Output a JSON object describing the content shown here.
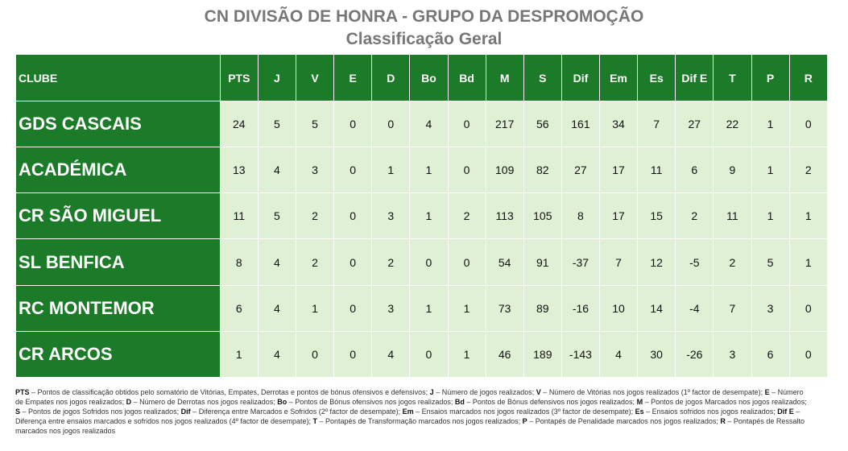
{
  "title": "CN DIVISÃO DE HONRA - GRUPO DA DESPROMOÇÃO",
  "subtitle": "Classificação Geral",
  "colors": {
    "header_green": "#1c7b28",
    "cell_light_green": "#dff0d5",
    "title_gray": "#777777"
  },
  "table": {
    "columns": [
      "CLUBE",
      "PTS",
      "J",
      "V",
      "E",
      "D",
      "Bo",
      "Bd",
      "M",
      "S",
      "Dif",
      "Em",
      "Es",
      "Dif E",
      "T",
      "P",
      "R"
    ],
    "rows": [
      [
        "GDS CASCAIS",
        "24",
        "5",
        "5",
        "0",
        "0",
        "4",
        "0",
        "217",
        "56",
        "161",
        "34",
        "7",
        "27",
        "22",
        "1",
        "0"
      ],
      [
        "ACADÉMICA",
        "13",
        "4",
        "3",
        "0",
        "1",
        "1",
        "0",
        "109",
        "82",
        "27",
        "17",
        "11",
        "6",
        "9",
        "1",
        "2"
      ],
      [
        "CR SÃO MIGUEL",
        "11",
        "5",
        "2",
        "0",
        "3",
        "1",
        "2",
        "113",
        "105",
        "8",
        "17",
        "15",
        "2",
        "11",
        "1",
        "1"
      ],
      [
        "SL BENFICA",
        "8",
        "4",
        "2",
        "0",
        "2",
        "0",
        "0",
        "54",
        "91",
        "-37",
        "7",
        "12",
        "-5",
        "2",
        "5",
        "1"
      ],
      [
        "RC MONTEMOR",
        "6",
        "4",
        "1",
        "0",
        "3",
        "1",
        "1",
        "73",
        "89",
        "-16",
        "10",
        "14",
        "-4",
        "7",
        "3",
        "0"
      ],
      [
        "CR ARCOS",
        "1",
        "4",
        "0",
        "0",
        "4",
        "0",
        "1",
        "46",
        "189",
        "-143",
        "4",
        "30",
        "-26",
        "3",
        "6",
        "0"
      ]
    ]
  },
  "legend": [
    {
      "key": "PTS",
      "desc": "Pontos de classificação obtidos pelo somatório de Vitórias, Empates, Derrotas e pontos de bónus ofensivos e defensivos;"
    },
    {
      "key": "J",
      "desc": "Número de jogos realizados;"
    },
    {
      "key": "V",
      "desc": "Número de Vitórias nos jogos realizados (1º factor de desempate);"
    },
    {
      "key": "E",
      "desc": "Número de Empates nos jogos realizados;"
    },
    {
      "key": "D",
      "desc": "Número de Derrotas nos jogos realizados;"
    },
    {
      "key": "Bo",
      "desc": "Pontos de Bónus ofensivos nos jogos realizados;"
    },
    {
      "key": "Bd",
      "desc": "Pontos de Bónus defensivos nos jogos realizados;"
    },
    {
      "key": "M",
      "desc": "Pontos de jogos Marcados nos jogos realizados;"
    },
    {
      "key": "S",
      "desc": "Pontos de jogos Sofridos nos jogos realizados;"
    },
    {
      "key": "Dif",
      "desc": "Diferença entre Marcados e Sofridos (2º factor de desempate);"
    },
    {
      "key": "Em",
      "desc": "Ensaios marcados nos jogos realizados (3º factor de desempate);"
    },
    {
      "key": "Es",
      "desc": "Ensaios sofridos nos jogos realizados;"
    },
    {
      "key": "Dif E",
      "desc": "Diferença entre ensaios marcados e sofridos nos jogos realizados (4º factor de desempate);"
    },
    {
      "key": "T",
      "desc": "Pontapés de Transformação marcados nos jogos realizados;"
    },
    {
      "key": "P",
      "desc": "Pontapés de Penalidade marcados nos jogos realizados;"
    },
    {
      "key": "R",
      "desc": "Pontapés de Ressalto marcados nos jogos realizados"
    }
  ]
}
